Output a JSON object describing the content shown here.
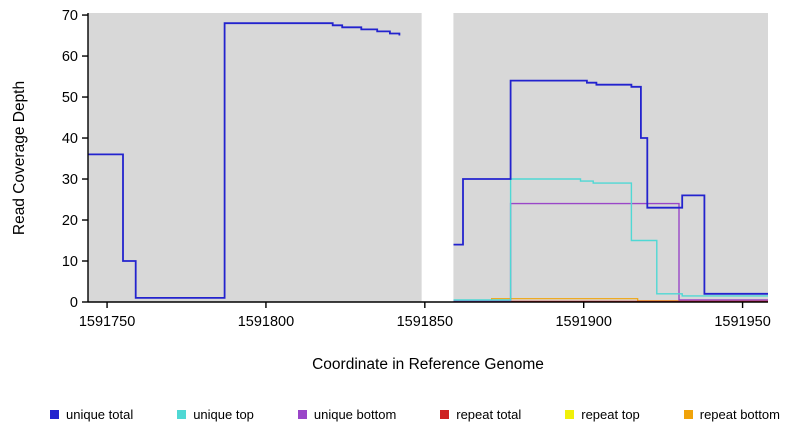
{
  "figure": {
    "background_color": "#ffffff",
    "plot_background_color": "#d8d8d8",
    "axis_color": "#000000",
    "masked_region": {
      "x_start": 1591849,
      "x_end": 1591859,
      "color": "#ffffff"
    }
  },
  "chart_data": {
    "type": "line",
    "step": true,
    "title": "",
    "xlabel": "Coordinate in Reference Genome",
    "ylabel": "Read Coverage Depth",
    "xlim": [
      1591744,
      1591958
    ],
    "ylim": [
      0,
      70.5
    ],
    "x_ticks": [
      1591750,
      1591800,
      1591850,
      1591900,
      1591950
    ],
    "y_ticks": [
      0,
      10,
      20,
      30,
      40,
      50,
      60,
      70
    ],
    "grid": false,
    "legend_position": "bottom",
    "series": [
      {
        "name": "unique total",
        "color": "#2323ce",
        "line_width": 1.8,
        "points": [
          [
            1591744,
            36
          ],
          [
            1591755,
            10
          ],
          [
            1591759,
            1
          ],
          [
            1591787,
            68
          ],
          [
            1591821,
            67.5
          ],
          [
            1591824,
            67
          ],
          [
            1591830,
            66.5
          ],
          [
            1591835,
            66
          ],
          [
            1591839,
            65.5
          ],
          [
            1591842,
            65
          ],
          [
            1591849,
            null
          ],
          [
            1591859,
            14
          ],
          [
            1591862,
            30
          ],
          [
            1591877,
            54
          ],
          [
            1591901,
            53.5
          ],
          [
            1591904,
            53
          ],
          [
            1591915,
            52.5
          ],
          [
            1591918,
            40
          ],
          [
            1591920,
            23
          ],
          [
            1591931,
            26
          ],
          [
            1591938,
            2
          ],
          [
            1591958,
            2
          ]
        ]
      },
      {
        "name": "unique top",
        "color": "#4fd8d4",
        "line_width": 1.4,
        "points": [
          [
            1591744,
            0.5
          ],
          [
            1591849,
            null
          ],
          [
            1591859,
            0.5
          ],
          [
            1591877,
            30
          ],
          [
            1591899,
            29.5
          ],
          [
            1591903,
            29
          ],
          [
            1591915,
            15
          ],
          [
            1591923,
            2
          ],
          [
            1591931,
            1.5
          ],
          [
            1591958,
            1.5
          ]
        ]
      },
      {
        "name": "unique bottom",
        "color": "#9a46c8",
        "line_width": 1.4,
        "points": [
          [
            1591744,
            0.3
          ],
          [
            1591849,
            null
          ],
          [
            1591859,
            0.3
          ],
          [
            1591877,
            24
          ],
          [
            1591930,
            0.5
          ],
          [
            1591958,
            0.5
          ]
        ]
      },
      {
        "name": "repeat total",
        "color": "#ce2020",
        "line_width": 1.2,
        "points": [
          [
            1591744,
            0.15
          ],
          [
            1591849,
            null
          ],
          [
            1591859,
            0.15
          ],
          [
            1591958,
            0.15
          ]
        ]
      },
      {
        "name": "repeat top",
        "color": "#f0f00a",
        "line_width": 1.2,
        "points": [
          [
            1591744,
            0.08
          ],
          [
            1591849,
            null
          ],
          [
            1591859,
            0.08
          ],
          [
            1591958,
            0.08
          ]
        ]
      },
      {
        "name": "repeat bottom",
        "color": "#f0a30a",
        "line_width": 1.2,
        "points": [
          [
            1591744,
            0.08
          ],
          [
            1591849,
            null
          ],
          [
            1591859,
            0.08
          ],
          [
            1591871,
            0.8
          ],
          [
            1591917,
            0.3
          ],
          [
            1591958,
            0.3
          ]
        ]
      }
    ]
  }
}
